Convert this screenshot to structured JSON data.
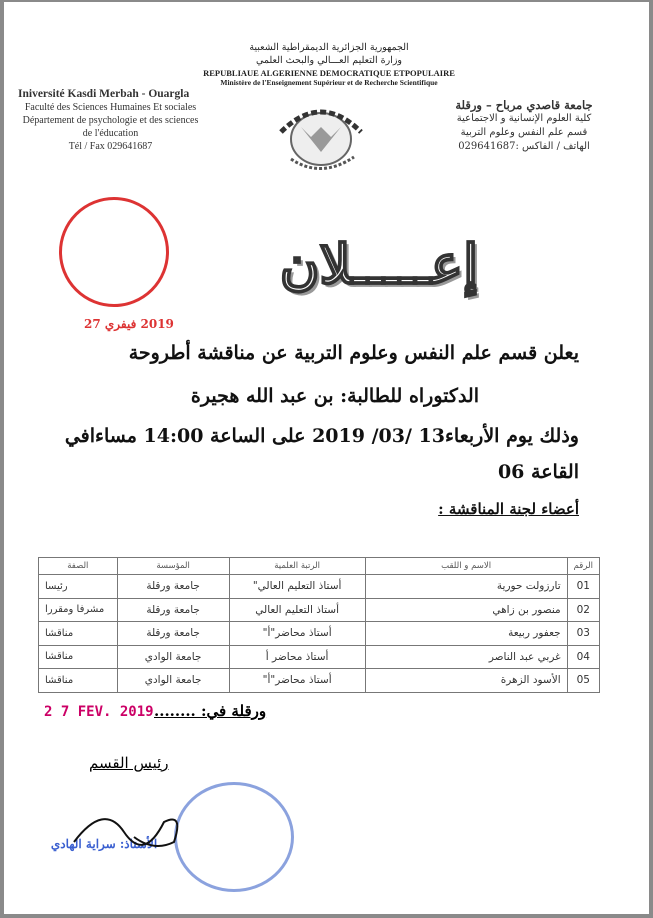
{
  "header": {
    "ar_line1": "الجمهورية الجزائرية الديمقراطية الشعبية",
    "ar_line2": "وزارة التعليم العـــالي والبحث العلمي",
    "fr_line1": "REPUBLIAUE ALGERIENNE DEMOCRATIQUE ETPOPULAIRE",
    "fr_line2": "Ministère de l'Enseignement Supérieur et de Recherche Scientifique"
  },
  "left_block": {
    "university": "Iniversité Kasdi Merbah - Ouargla",
    "faculty": "Faculté des Sciences Humaines Et sociales",
    "department": "Département de psychologie et des sciences de l'éducation",
    "phone": "Tél / Fax 029641687"
  },
  "right_block": {
    "university": "جامعة قاصدي مرباح – ورقلة",
    "faculty": "كلية العلوم الإنسانية و الاجتماعية",
    "department": "قسم علم النفس وعلوم التربية",
    "phone": "الهاتف / الفاكس :029641687"
  },
  "logo": {
    "ring_text_ar": "جامعة قاصدي مرباح ورقلة",
    "ring_text_fr": "Université Kasdi Merbah Ouargla"
  },
  "stamp_date": "2019 فيفري 27",
  "title": "إعـــــلان",
  "body": {
    "line1": "يعلن قسم علم النفس وعلوم التربية عن مناقشة أطروحة",
    "line2": "الدكتوراه للطالبة: بن عبد الله هجيرة",
    "line3": "وذلك يوم الأربعاء13 /03/ 2019 على الساعة 14:00 مساءافي",
    "line4": "القاعة 06",
    "committee_label": "أعضاء لجنة المناقشة :"
  },
  "table": {
    "headers": [
      "الرقم",
      "الاسم و اللقب",
      "الرتبة العلمية",
      "المؤسسة",
      "الصفة"
    ],
    "rows": [
      [
        "01",
        "تارزولت حورية",
        "أستاذ التعليم العالي\"",
        "جامعة ورقلة",
        "رئيسا"
      ],
      [
        "02",
        "منصور بن زاهي",
        "أستاذ التعليم العالي",
        "جامعة ورقلة",
        "مشرفا ومقررا"
      ],
      [
        "03",
        "جعفور ربيعة",
        "أستاذ محاضر\"أ\"",
        "جامعة ورقلة",
        "مناقشا"
      ],
      [
        "04",
        "غربي عبد الناصر",
        "أستاذ محاضر أ",
        "جامعة الوادي",
        "مناقشا"
      ],
      [
        "05",
        "الأسود الزهرة",
        "أستاذ محاضر\"أ\"",
        "جامعة الوادي",
        "مناقشا"
      ]
    ]
  },
  "footer": {
    "place_date_label": "ورقلة في: ........",
    "date_stamp": "2 7 FEV. 2019",
    "head_title": "رئيس القسم",
    "stamp_name": "الأستاذ: سراية الهادي"
  }
}
